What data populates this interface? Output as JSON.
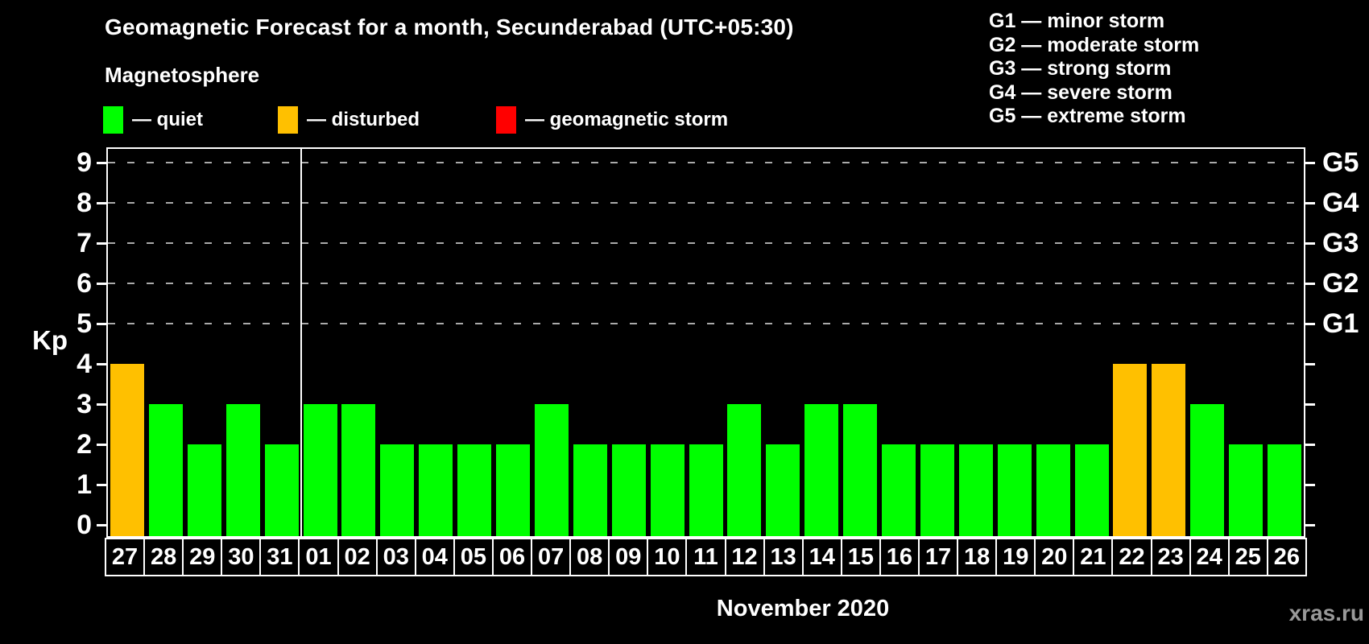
{
  "header": {
    "title": "Geomagnetic Forecast for a month, Secunderabad (UTC+05:30)",
    "subtitle": "Magnetosphere"
  },
  "legend": {
    "items": [
      {
        "key": "quiet",
        "label": "— quiet",
        "color": "#00ff00"
      },
      {
        "key": "disturbed",
        "label": "— disturbed",
        "color": "#ffc000"
      },
      {
        "key": "storm",
        "label": "— geomagnetic storm",
        "color": "#ff0000"
      }
    ]
  },
  "g_scale_legend": {
    "lines": [
      "G1 — minor storm",
      "G2 — moderate storm",
      "G3 — strong storm",
      "G4 — severe storm",
      "G5 — extreme storm"
    ]
  },
  "axes": {
    "y_title": "Kp",
    "left_ticks": [
      "0",
      "1",
      "2",
      "3",
      "4",
      "5",
      "6",
      "7",
      "8",
      "9"
    ],
    "right_labels": [
      {
        "kp": 5,
        "label": "G1"
      },
      {
        "kp": 6,
        "label": "G2"
      },
      {
        "kp": 7,
        "label": "G3"
      },
      {
        "kp": 8,
        "label": "G4"
      },
      {
        "kp": 9,
        "label": "G5"
      }
    ],
    "grid_levels": [
      5,
      6,
      7,
      8,
      9
    ]
  },
  "chart_data": {
    "type": "bar",
    "title": "Geomagnetic Forecast for a month, Secunderabad (UTC+05:30)",
    "xlabel": "November 2020",
    "ylabel": "Kp",
    "ylim": [
      0,
      9
    ],
    "grid": "dashed at Kp 5-9 (G-storm levels)",
    "legend_position": "top-left and top-right",
    "categories": [
      "27",
      "28",
      "29",
      "30",
      "31",
      "01",
      "02",
      "03",
      "04",
      "05",
      "06",
      "07",
      "08",
      "09",
      "10",
      "11",
      "12",
      "13",
      "14",
      "15",
      "16",
      "17",
      "18",
      "19",
      "20",
      "21",
      "22",
      "23",
      "24",
      "25",
      "26"
    ],
    "values": [
      4,
      3,
      2,
      3,
      2,
      3,
      3,
      2,
      2,
      2,
      2,
      3,
      2,
      2,
      2,
      2,
      3,
      2,
      3,
      3,
      2,
      2,
      2,
      2,
      2,
      2,
      4,
      4,
      3,
      2,
      2
    ],
    "statuses": [
      "disturbed",
      "quiet",
      "quiet",
      "quiet",
      "quiet",
      "quiet",
      "quiet",
      "quiet",
      "quiet",
      "quiet",
      "quiet",
      "quiet",
      "quiet",
      "quiet",
      "quiet",
      "quiet",
      "quiet",
      "quiet",
      "quiet",
      "quiet",
      "quiet",
      "quiet",
      "quiet",
      "quiet",
      "quiet",
      "quiet",
      "disturbed",
      "disturbed",
      "quiet",
      "quiet",
      "quiet"
    ],
    "status_colors": {
      "quiet": "#00ff00",
      "disturbed": "#ffc000",
      "storm": "#ff0000"
    },
    "month_separator_after_index": 4
  },
  "footer": {
    "month_label": "November 2020",
    "watermark": "xras.ru"
  }
}
